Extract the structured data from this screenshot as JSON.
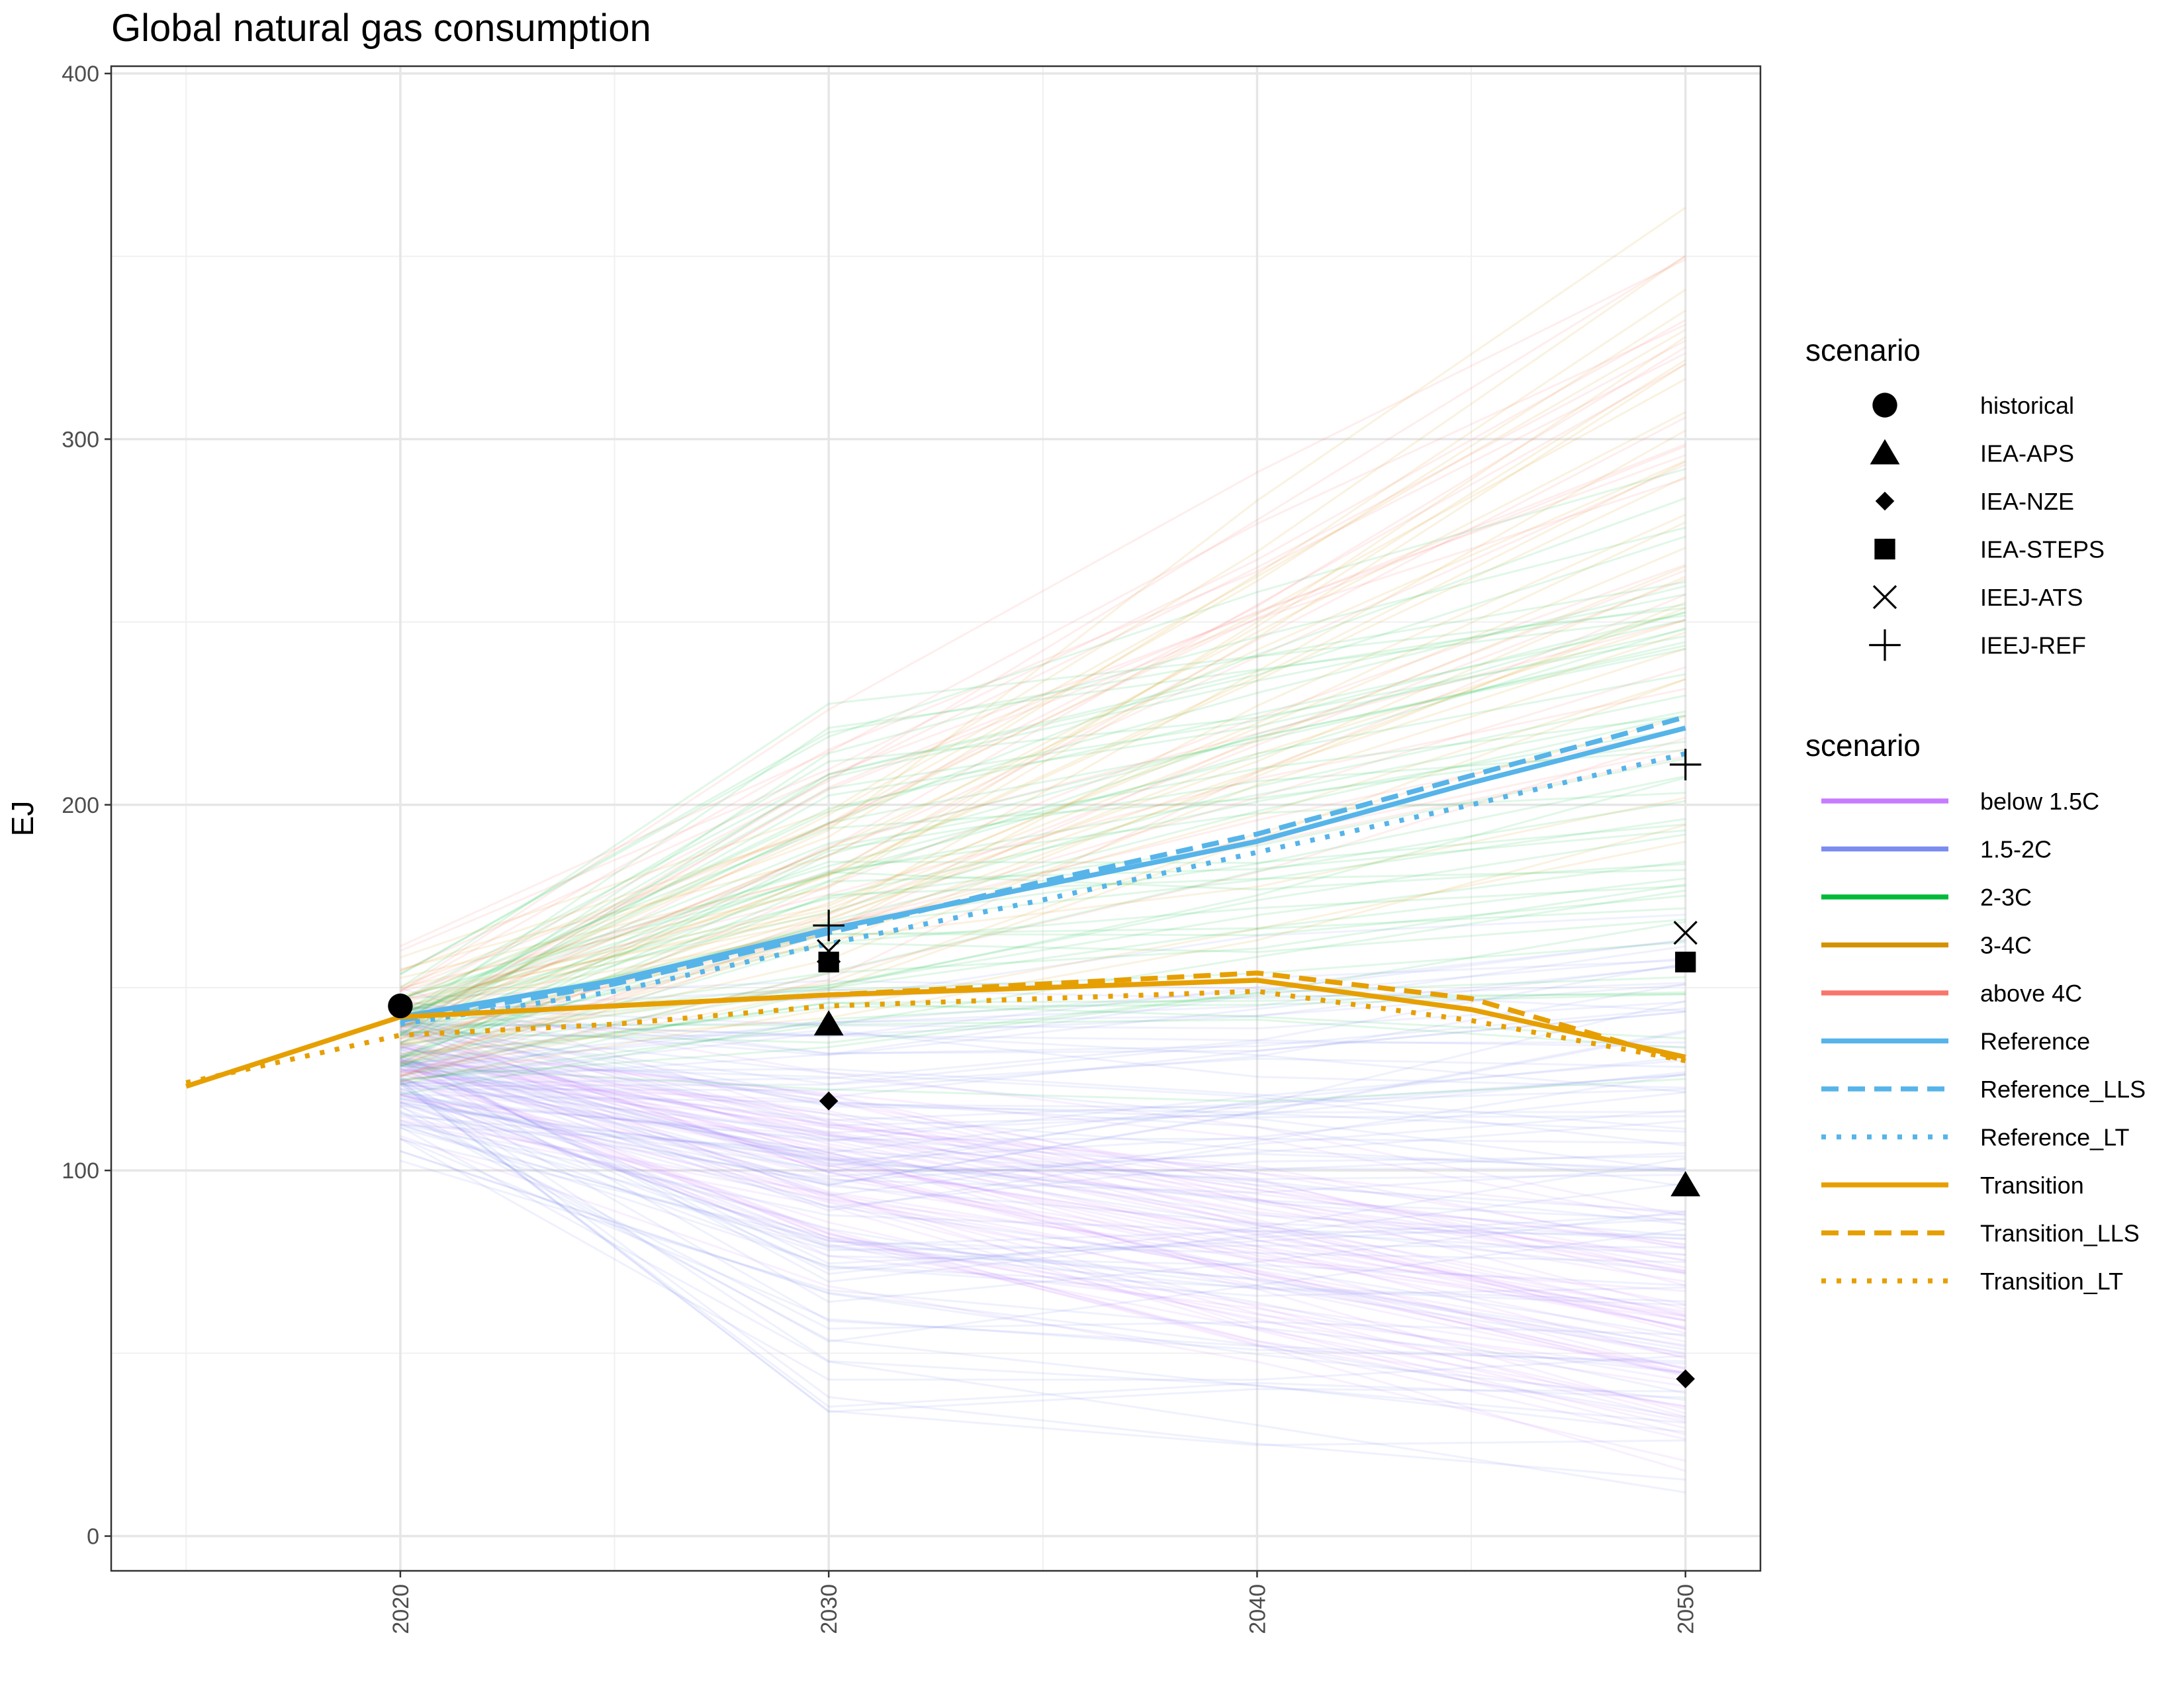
{
  "chart_data": {
    "type": "line",
    "title": "Global natural gas consumption",
    "xlabel": "",
    "ylabel": "EJ",
    "xlim": [
      2015,
      2050
    ],
    "ylim": [
      0,
      400
    ],
    "x_ticks": [
      2020,
      2030,
      2040,
      2050
    ],
    "y_ticks": [
      0,
      100,
      200,
      300,
      400
    ],
    "grid": true,
    "legend_position": "right",
    "ensemble_lines": {
      "description": "many faint scenario pathways coloured by warming category",
      "categories": [
        {
          "name": "below 1.5C",
          "color": "#c77cff",
          "ranges": [
            [
              104,
              152
            ],
            [
              60,
              140
            ],
            [
              12,
              95
            ]
          ]
        },
        {
          "name": "1.5-2C",
          "color": "#7b8cf0",
          "ranges": [
            [
              100,
              150
            ],
            [
              28,
              160
            ],
            [
              10,
              180
            ]
          ]
        },
        {
          "name": "2-3C",
          "color": "#00ba38",
          "ranges": [
            [
              118,
              155
            ],
            [
              115,
              236
            ],
            [
              120,
              300
            ]
          ]
        },
        {
          "name": "3-4C",
          "color": "#d39200",
          "ranges": [
            [
              122,
              160
            ],
            [
              140,
              205
            ],
            [
              175,
              380
            ]
          ]
        },
        {
          "name": "above 4C",
          "color": "#f8766d",
          "ranges": [
            [
              122,
              166
            ],
            [
              140,
              232
            ],
            [
              200,
              384
            ]
          ]
        }
      ],
      "x": [
        2020,
        2030,
        2050
      ]
    },
    "series": [
      {
        "name": "Reference",
        "color": "#56b4e9",
        "dash": "solid",
        "x": [
          2020,
          2025,
          2030,
          2035,
          2040,
          2045,
          2050
        ],
        "y": [
          142,
          152,
          166,
          178,
          190,
          206,
          221
        ]
      },
      {
        "name": "Reference_LLS",
        "color": "#56b4e9",
        "dash": "dashed",
        "x": [
          2020,
          2025,
          2030,
          2035,
          2040,
          2045,
          2050
        ],
        "y": [
          141,
          151,
          165,
          179,
          192,
          208,
          224
        ]
      },
      {
        "name": "Reference_LT",
        "color": "#56b4e9",
        "dash": "dotted",
        "x": [
          2020,
          2025,
          2030,
          2035,
          2040,
          2045,
          2050
        ],
        "y": [
          140,
          149,
          162,
          174,
          187,
          200,
          214
        ]
      },
      {
        "name": "Transition",
        "color": "#e69f00",
        "dash": "solid",
        "x": [
          2015,
          2020,
          2025,
          2030,
          2035,
          2040,
          2045,
          2050
        ],
        "y": [
          123,
          142,
          145,
          148,
          150,
          152,
          144,
          131
        ]
      },
      {
        "name": "Transition_LLS",
        "color": "#e69f00",
        "dash": "dashed",
        "x": [
          2020,
          2025,
          2030,
          2035,
          2040,
          2045,
          2050
        ],
        "y": [
          142,
          145,
          148,
          151,
          154,
          147,
          130
        ]
      },
      {
        "name": "Transition_LT",
        "color": "#e69f00",
        "dash": "dotted",
        "x": [
          2015,
          2020,
          2025,
          2030,
          2035,
          2040,
          2045,
          2050
        ],
        "y": [
          124,
          137,
          140,
          145,
          147,
          149,
          141,
          130
        ]
      }
    ],
    "points": [
      {
        "name": "historical",
        "shape": "circle",
        "x": [
          2020
        ],
        "y": [
          145
        ]
      },
      {
        "name": "IEA-APS",
        "shape": "triangle",
        "x": [
          2030,
          2050
        ],
        "y": [
          140,
          96
        ]
      },
      {
        "name": "IEA-NZE",
        "shape": "diamond",
        "x": [
          2030,
          2050
        ],
        "y": [
          119,
          43
        ]
      },
      {
        "name": "IEA-STEPS",
        "shape": "square",
        "x": [
          2030,
          2050
        ],
        "y": [
          157,
          157
        ]
      },
      {
        "name": "IEEJ-ATS",
        "shape": "cross",
        "x": [
          2030,
          2050
        ],
        "y": [
          160,
          165
        ]
      },
      {
        "name": "IEEJ-REF",
        "shape": "plus",
        "x": [
          2030,
          2050
        ],
        "y": [
          167,
          211
        ]
      }
    ],
    "legend_shapes": {
      "title": "scenario",
      "items": [
        {
          "label": "historical",
          "shape": "circle"
        },
        {
          "label": "IEA-APS",
          "shape": "triangle"
        },
        {
          "label": "IEA-NZE",
          "shape": "diamond"
        },
        {
          "label": "IEA-STEPS",
          "shape": "square"
        },
        {
          "label": "IEEJ-ATS",
          "shape": "cross"
        },
        {
          "label": "IEEJ-REF",
          "shape": "plus"
        }
      ]
    },
    "legend_lines": {
      "title": "scenario",
      "items": [
        {
          "label": "below 1.5C",
          "color": "#c77cff",
          "dash": "solid"
        },
        {
          "label": "1.5-2C",
          "color": "#7b8cf0",
          "dash": "solid"
        },
        {
          "label": "2-3C",
          "color": "#00ba38",
          "dash": "solid"
        },
        {
          "label": "3-4C",
          "color": "#d39200",
          "dash": "solid"
        },
        {
          "label": "above 4C",
          "color": "#f8766d",
          "dash": "solid"
        },
        {
          "label": "Reference",
          "color": "#56b4e9",
          "dash": "solid"
        },
        {
          "label": "Reference_LLS",
          "color": "#56b4e9",
          "dash": "dashed"
        },
        {
          "label": "Reference_LT",
          "color": "#56b4e9",
          "dash": "dotted"
        },
        {
          "label": "Transition",
          "color": "#e69f00",
          "dash": "solid"
        },
        {
          "label": "Transition_LLS",
          "color": "#e69f00",
          "dash": "dashed"
        },
        {
          "label": "Transition_LT",
          "color": "#e69f00",
          "dash": "dotted"
        }
      ]
    }
  }
}
